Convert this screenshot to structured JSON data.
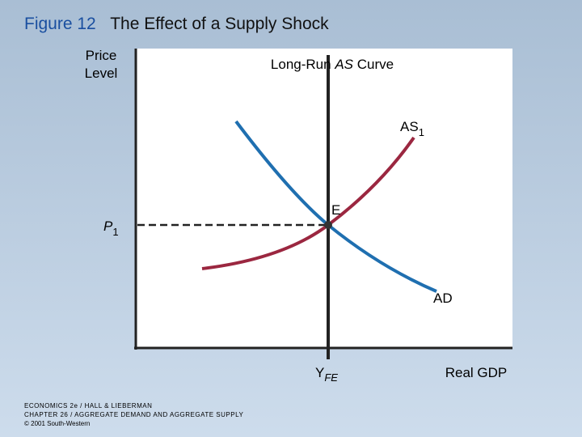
{
  "header": {
    "figure": "Figure 12",
    "title": "The Effect of a Supply Shock"
  },
  "axes": {
    "y_label": [
      "Price",
      "Level"
    ],
    "x_label": "Real GDP"
  },
  "labels": {
    "lras": [
      "Long-Run ",
      "AS",
      " Curve"
    ],
    "as": {
      "main": "AS",
      "sub": "1"
    },
    "ad": "AD",
    "equilibrium": "E",
    "price": {
      "main": "P",
      "sub": "1"
    },
    "output": {
      "main": "Y",
      "sub": "FE"
    }
  },
  "footer": [
    "ECONOMICS 2e / HALL & LIEBERMAN",
    "CHAPTER 26 / AGGREGATE DEMAND AND AGGREGATE SUPPLY",
    "© 2001 South-Western"
  ]
}
